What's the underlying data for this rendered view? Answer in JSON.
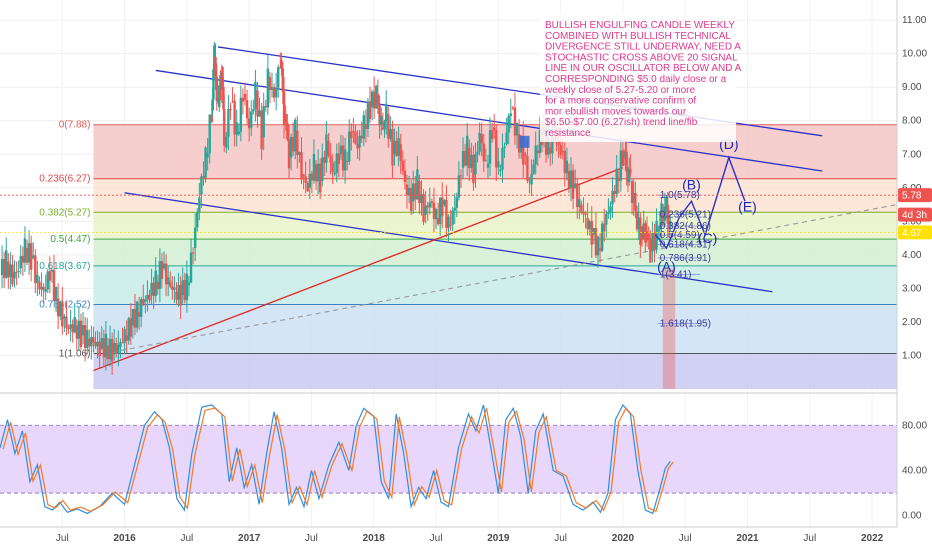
{
  "chart_data": {
    "type": "candlestick",
    "x_ticks": [
      {
        "label": "Jul",
        "year": 2015.5
      },
      {
        "label": "2016",
        "year": 2016.0
      },
      {
        "label": "Jul",
        "year": 2016.5
      },
      {
        "label": "2017",
        "year": 2017.0
      },
      {
        "label": "Jul",
        "year": 2017.5
      },
      {
        "label": "2018",
        "year": 2018.0
      },
      {
        "label": "Jul",
        "year": 2018.5
      },
      {
        "label": "2019",
        "year": 2019.0
      },
      {
        "label": "Jul",
        "year": 2019.5
      },
      {
        "label": "2020",
        "year": 2020.0
      },
      {
        "label": "Jul",
        "year": 2020.5
      },
      {
        "label": "2021",
        "year": 2021.0
      },
      {
        "label": "Jul",
        "year": 2021.5
      },
      {
        "label": "2022",
        "year": 2022.0
      }
    ],
    "price_axis": {
      "ticks": [
        "1.00",
        "2.00",
        "3.00",
        "4.00",
        "5.00",
        "6.00",
        "7.00",
        "8.00",
        "9.00",
        "10.00",
        "11.00"
      ],
      "ylim": [
        0.0,
        11.6
      ]
    },
    "oscillator_axis": {
      "ticks": [
        "0.00",
        "40.00",
        "80.00"
      ],
      "ylim": [
        -10,
        105
      ],
      "band": [
        20,
        80
      ]
    },
    "fib_levels": [
      {
        "label": "0(7.88)",
        "value": 7.88,
        "color": "#e05c5c"
      },
      {
        "label": "0.236(6.27)",
        "value": 6.27,
        "color": "#d84b4b"
      },
      {
        "label": "0.382(5.27)",
        "value": 5.27,
        "color": "#7cad2c"
      },
      {
        "label": "0.5(4.47)",
        "value": 4.47,
        "color": "#3aa845"
      },
      {
        "label": "0.618(3.67)",
        "value": 3.67,
        "color": "#26a69a"
      },
      {
        "label": "0.786(2.52)",
        "value": 2.52,
        "color": "#3b82c4"
      },
      {
        "label": "1(1.06)",
        "value": 1.06,
        "color": "#555555"
      }
    ],
    "sub_fib_levels": [
      {
        "label": "1.0(5.78)",
        "value": 5.78
      },
      {
        "label": "0.236(5.21)",
        "value": 5.21
      },
      {
        "label": "0.382(4.86)",
        "value": 4.86
      },
      {
        "label": "0.5(4.59)",
        "value": 4.59
      },
      {
        "label": "0.618(4.31)",
        "value": 4.31
      },
      {
        "label": "0.786(3.91)",
        "value": 3.91
      },
      {
        "label": "1(3.41)",
        "value": 3.41
      },
      {
        "label": "1.618(1.95)",
        "value": 1.95
      }
    ],
    "price_badges": [
      {
        "label": "5.78",
        "value": 5.78,
        "color": "#ef5350"
      },
      {
        "label": "4d 3h",
        "value": 5.2,
        "color": "#ef5350"
      },
      {
        "label": "4.67",
        "value": 4.67,
        "color": "#ffe100",
        "text_color": "#000000"
      }
    ],
    "wave_labels": [
      {
        "label": "(A)",
        "year": 2020.35,
        "value": 3.5
      },
      {
        "label": "(B)",
        "year": 2020.55,
        "value": 5.95
      },
      {
        "label": "(C)",
        "year": 2020.68,
        "value": 4.35
      },
      {
        "label": "(D)",
        "year": 2020.85,
        "value": 7.15
      },
      {
        "label": "(E)",
        "year": 2021.0,
        "value": 5.3
      }
    ],
    "annotation": "BULLISH ENGULFING CANDLE WEEKLY COMBINED WITH BULLISH TECHNICAL DIVERGENCE STILL UNDERWAY, NEED A STOCHASTIC CROSS ABOVE 20 SIGNAL LINE IN OUR OSCILLATOR BELOW AND A CORRESPONDING $5.0 daily close or a weekly close of 5.27-5.20 or more for a more conservative confirm of mor ebullish moves towards our $6.50-$7.00 (6.27ish) trend line/fib resistance",
    "price_series": [
      [
        2015.0,
        3.4
      ],
      [
        2015.05,
        3.8
      ],
      [
        2015.1,
        3.3
      ],
      [
        2015.15,
        3.6
      ],
      [
        2015.2,
        4.2
      ],
      [
        2015.25,
        3.9
      ],
      [
        2015.3,
        3.2
      ],
      [
        2015.35,
        2.9
      ],
      [
        2015.4,
        3.5
      ],
      [
        2015.45,
        2.7
      ],
      [
        2015.5,
        2.1
      ],
      [
        2015.55,
        1.8
      ],
      [
        2015.6,
        1.9
      ],
      [
        2015.65,
        1.6
      ],
      [
        2015.7,
        1.5
      ],
      [
        2015.75,
        1.4
      ],
      [
        2015.8,
        1.2
      ],
      [
        2015.85,
        1.3
      ],
      [
        2015.9,
        1.1
      ],
      [
        2015.95,
        1.25
      ],
      [
        2016.0,
        1.6
      ],
      [
        2016.05,
        1.9
      ],
      [
        2016.1,
        2.3
      ],
      [
        2016.15,
        2.6
      ],
      [
        2016.2,
        2.8
      ],
      [
        2016.25,
        3.2
      ],
      [
        2016.3,
        3.6
      ],
      [
        2016.35,
        3.2
      ],
      [
        2016.4,
        2.9
      ],
      [
        2016.45,
        2.8
      ],
      [
        2016.5,
        3.1
      ],
      [
        2016.55,
        4.2
      ],
      [
        2016.6,
        5.8
      ],
      [
        2016.65,
        6.9
      ],
      [
        2016.7,
        8.3
      ],
      [
        2016.72,
        9.9
      ],
      [
        2016.75,
        8.4
      ],
      [
        2016.78,
        9.6
      ],
      [
        2016.8,
        7.2
      ],
      [
        2016.85,
        8.6
      ],
      [
        2016.9,
        7.6
      ],
      [
        2016.95,
        8.8
      ],
      [
        2017.0,
        7.8
      ],
      [
        2017.05,
        8.9
      ],
      [
        2017.1,
        7.5
      ],
      [
        2017.15,
        9.3
      ],
      [
        2017.2,
        8.7
      ],
      [
        2017.25,
        9.8
      ],
      [
        2017.28,
        8.2
      ],
      [
        2017.32,
        6.9
      ],
      [
        2017.37,
        7.7
      ],
      [
        2017.42,
        6.4
      ],
      [
        2017.47,
        6.0
      ],
      [
        2017.52,
        6.7
      ],
      [
        2017.57,
        6.2
      ],
      [
        2017.62,
        7.4
      ],
      [
        2017.67,
        6.4
      ],
      [
        2017.72,
        7.0
      ],
      [
        2017.77,
        6.8
      ],
      [
        2017.82,
        7.7
      ],
      [
        2017.87,
        7.2
      ],
      [
        2017.92,
        7.9
      ],
      [
        2017.97,
        8.4
      ],
      [
        2018.02,
        8.8
      ],
      [
        2018.06,
        7.8
      ],
      [
        2018.1,
        8.2
      ],
      [
        2018.15,
        7.0
      ],
      [
        2018.2,
        7.3
      ],
      [
        2018.25,
        6.1
      ],
      [
        2018.3,
        5.6
      ],
      [
        2018.35,
        6.2
      ],
      [
        2018.4,
        5.2
      ],
      [
        2018.45,
        5.6
      ],
      [
        2018.5,
        5.1
      ],
      [
        2018.55,
        5.5
      ],
      [
        2018.6,
        4.9
      ],
      [
        2018.65,
        5.4
      ],
      [
        2018.7,
        6.6
      ],
      [
        2018.75,
        7.2
      ],
      [
        2018.8,
        6.4
      ],
      [
        2018.85,
        7.6
      ],
      [
        2018.9,
        6.6
      ],
      [
        2018.95,
        7.8
      ],
      [
        2019.0,
        6.5
      ],
      [
        2019.05,
        7.3
      ],
      [
        2019.1,
        8.4
      ],
      [
        2019.15,
        7.6
      ],
      [
        2019.2,
        7.0
      ],
      [
        2019.25,
        6.1
      ],
      [
        2019.3,
        7.1
      ],
      [
        2019.35,
        7.6
      ],
      [
        2019.4,
        7.2
      ],
      [
        2019.45,
        7.5
      ],
      [
        2019.5,
        7.1
      ],
      [
        2019.55,
        6.5
      ],
      [
        2019.6,
        6.0
      ],
      [
        2019.65,
        5.5
      ],
      [
        2019.7,
        5.1
      ],
      [
        2019.75,
        4.6
      ],
      [
        2019.8,
        4.2
      ],
      [
        2019.85,
        4.9
      ],
      [
        2019.9,
        5.5
      ],
      [
        2019.95,
        6.3
      ],
      [
        2020.0,
        7.0
      ],
      [
        2020.03,
        6.6
      ],
      [
        2020.06,
        6.2
      ],
      [
        2020.1,
        5.3
      ],
      [
        2020.14,
        4.5
      ],
      [
        2020.18,
        4.7
      ],
      [
        2020.22,
        4.1
      ],
      [
        2020.27,
        4.7
      ],
      [
        2020.31,
        5.2
      ],
      [
        2020.35,
        5.5
      ],
      [
        2020.38,
        4.67
      ]
    ],
    "oscillator_k": [
      [
        2015.0,
        60
      ],
      [
        2015.06,
        85
      ],
      [
        2015.12,
        55
      ],
      [
        2015.18,
        75
      ],
      [
        2015.24,
        30
      ],
      [
        2015.3,
        45
      ],
      [
        2015.36,
        8
      ],
      [
        2015.42,
        5
      ],
      [
        2015.48,
        12
      ],
      [
        2015.54,
        3
      ],
      [
        2015.62,
        6
      ],
      [
        2015.7,
        2
      ],
      [
        2015.8,
        8
      ],
      [
        2015.9,
        20
      ],
      [
        2016.0,
        10
      ],
      [
        2016.08,
        45
      ],
      [
        2016.16,
        80
      ],
      [
        2016.24,
        92
      ],
      [
        2016.3,
        85
      ],
      [
        2016.36,
        60
      ],
      [
        2016.42,
        15
      ],
      [
        2016.48,
        5
      ],
      [
        2016.54,
        55
      ],
      [
        2016.62,
        96
      ],
      [
        2016.7,
        98
      ],
      [
        2016.78,
        90
      ],
      [
        2016.84,
        30
      ],
      [
        2016.9,
        60
      ],
      [
        2016.96,
        25
      ],
      [
        2017.02,
        45
      ],
      [
        2017.08,
        10
      ],
      [
        2017.14,
        55
      ],
      [
        2017.2,
        92
      ],
      [
        2017.26,
        60
      ],
      [
        2017.32,
        10
      ],
      [
        2017.38,
        25
      ],
      [
        2017.44,
        8
      ],
      [
        2017.5,
        40
      ],
      [
        2017.56,
        15
      ],
      [
        2017.64,
        45
      ],
      [
        2017.72,
        65
      ],
      [
        2017.8,
        40
      ],
      [
        2017.86,
        80
      ],
      [
        2017.92,
        95
      ],
      [
        2018.0,
        88
      ],
      [
        2018.06,
        30
      ],
      [
        2018.12,
        15
      ],
      [
        2018.18,
        90
      ],
      [
        2018.24,
        55
      ],
      [
        2018.3,
        8
      ],
      [
        2018.36,
        25
      ],
      [
        2018.42,
        15
      ],
      [
        2018.48,
        40
      ],
      [
        2018.54,
        12
      ],
      [
        2018.6,
        8
      ],
      [
        2018.68,
        60
      ],
      [
        2018.76,
        90
      ],
      [
        2018.82,
        75
      ],
      [
        2018.88,
        98
      ],
      [
        2018.94,
        60
      ],
      [
        2019.0,
        20
      ],
      [
        2019.06,
        85
      ],
      [
        2019.12,
        95
      ],
      [
        2019.18,
        70
      ],
      [
        2019.24,
        20
      ],
      [
        2019.3,
        75
      ],
      [
        2019.36,
        90
      ],
      [
        2019.44,
        40
      ],
      [
        2019.52,
        35
      ],
      [
        2019.6,
        10
      ],
      [
        2019.68,
        5
      ],
      [
        2019.76,
        12
      ],
      [
        2019.82,
        3
      ],
      [
        2019.88,
        20
      ],
      [
        2019.94,
        85
      ],
      [
        2020.0,
        98
      ],
      [
        2020.06,
        90
      ],
      [
        2020.12,
        40
      ],
      [
        2020.18,
        5
      ],
      [
        2020.24,
        2
      ],
      [
        2020.3,
        25
      ],
      [
        2020.34,
        42
      ],
      [
        2020.38,
        48
      ]
    ]
  }
}
